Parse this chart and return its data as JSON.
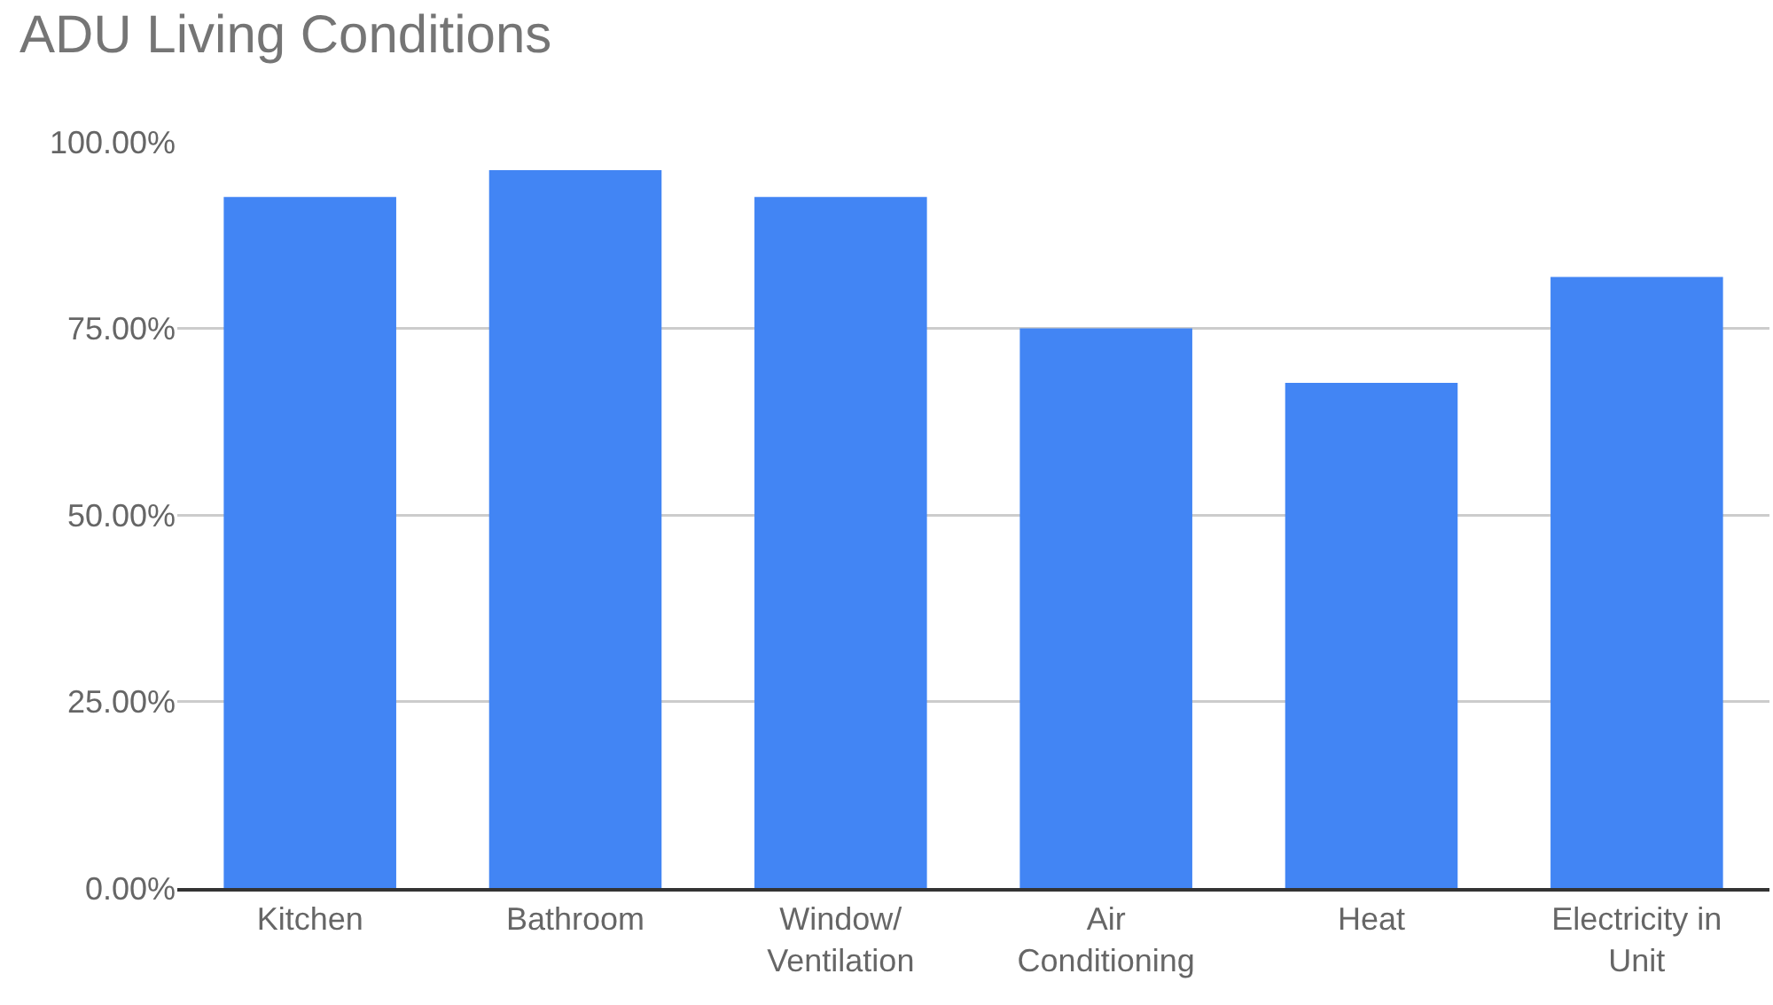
{
  "chart_data": {
    "type": "bar",
    "title": "ADU Living Conditions",
    "categories": [
      "Kitchen",
      "Bathroom",
      "Window/\nVentilation",
      "Air\nConditioning",
      "Heat",
      "Electricity in\nUnit"
    ],
    "values": [
      92.6,
      96.2,
      92.6,
      75,
      67.7,
      81.9
    ],
    "color": "#4285f4",
    "ylim": [
      0,
      100
    ],
    "yticks": [
      {
        "value": 0,
        "label": "0.00%"
      },
      {
        "value": 25,
        "label": "25.00%"
      },
      {
        "value": 50,
        "label": "50.00%"
      },
      {
        "value": 75,
        "label": "75.00%"
      },
      {
        "value": 100,
        "label": "100.00%"
      }
    ],
    "grid": "y",
    "legend": false
  }
}
